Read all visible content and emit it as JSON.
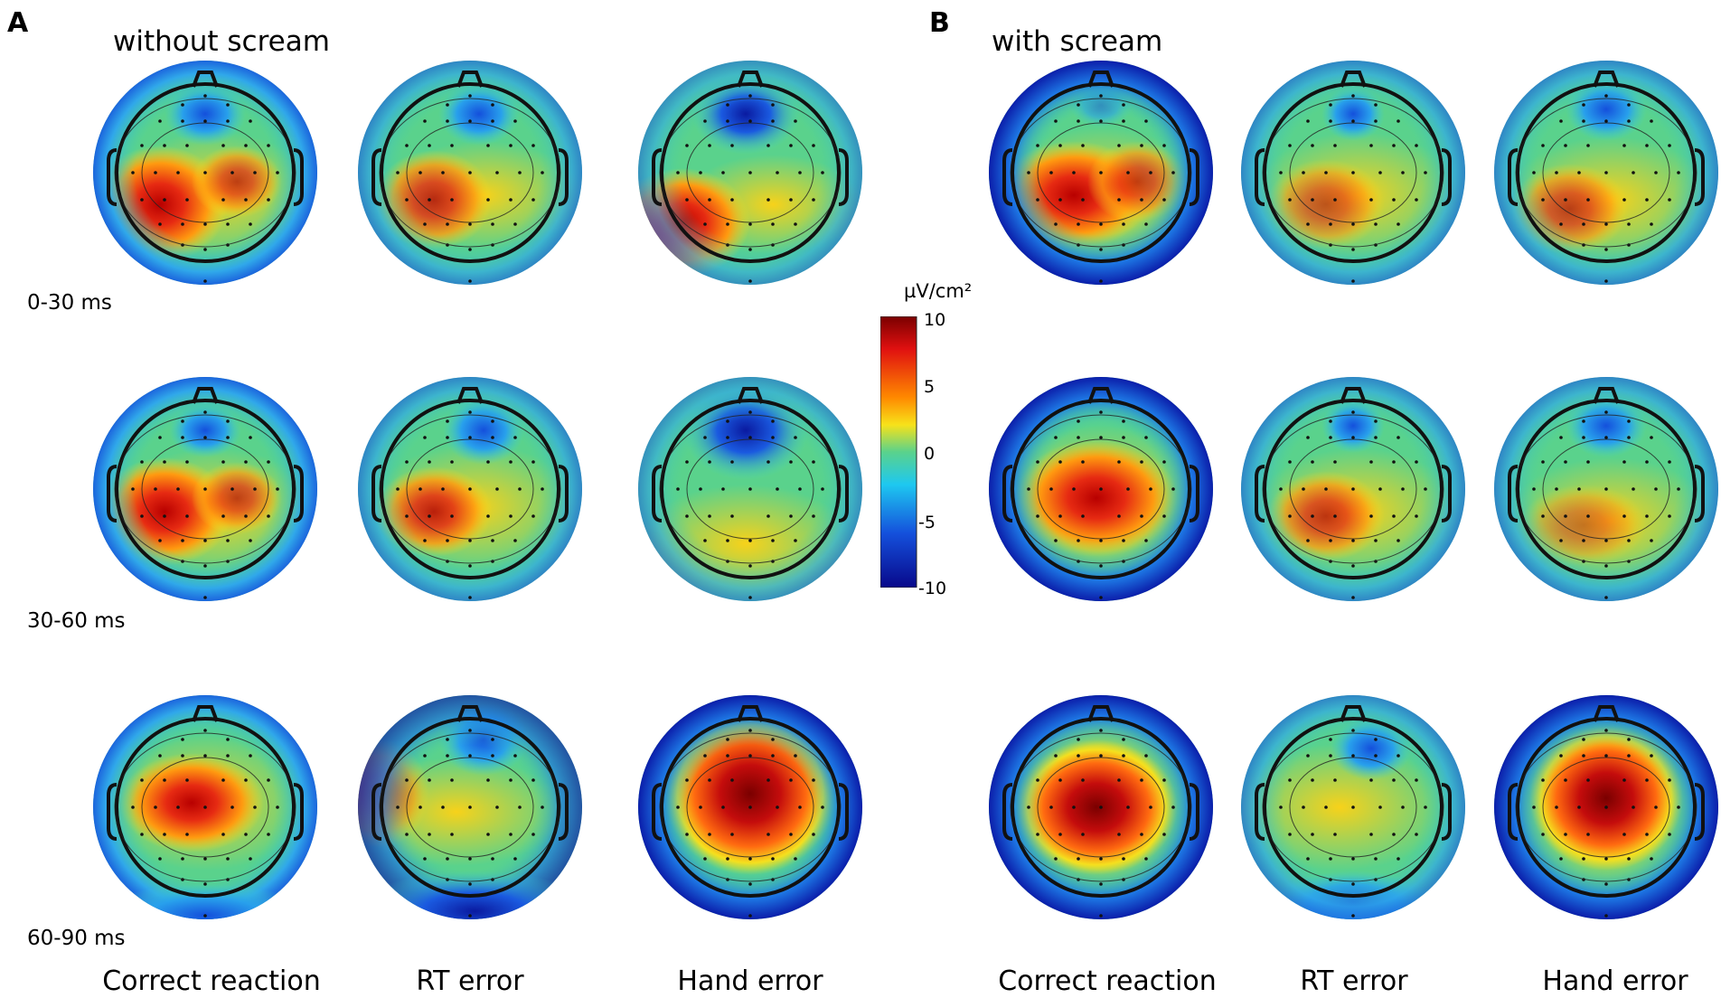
{
  "panels": {
    "a": {
      "letter": "A",
      "title": "without scream"
    },
    "b": {
      "letter": "B",
      "title": "with scream"
    }
  },
  "rows": [
    "0-30 ms",
    "30-60 ms",
    "60-90 ms"
  ],
  "columns": [
    "Correct reaction",
    "RT error",
    "Hand error"
  ],
  "colorbar": {
    "unit": "µV/cm²",
    "ticks": [
      "10",
      "5",
      "0",
      "-5",
      "-10"
    ],
    "range": [
      -10,
      10
    ]
  },
  "colors": {
    "max": "#8b0000",
    "high": "#e62a12",
    "mid_high": "#f5d20a",
    "zero": "#5ad28c",
    "mid_low": "#32b4e6",
    "low": "#1450dc",
    "min": "#0a0a8c"
  }
}
